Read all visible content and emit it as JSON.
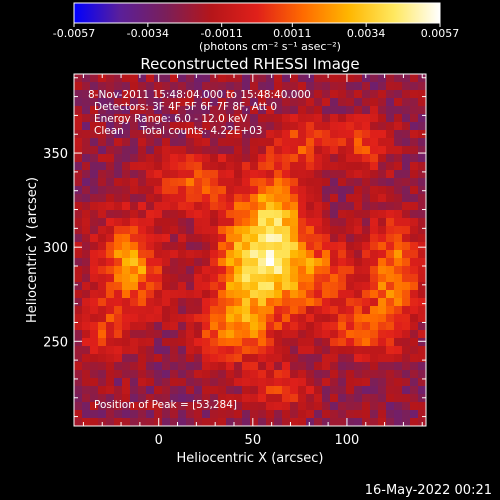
{
  "chart_data": {
    "type": "heatmap",
    "title": "Reconstructed RHESSI Image",
    "xlabel": "Heliocentric X (arcsec)",
    "ylabel": "Heliocentric Y (arcsec)",
    "xlim": [
      -45,
      142
    ],
    "ylim": [
      205,
      392
    ],
    "x_ticks": [
      0,
      50,
      100
    ],
    "y_ticks": [
      250,
      300,
      350
    ],
    "colorbar": {
      "range": [
        -0.0057,
        0.0057
      ],
      "tick_values": [
        -0.0057,
        -0.0034,
        -0.0011,
        0.0011,
        0.0034,
        0.0057
      ],
      "tick_labels": [
        "-0.0057",
        "-0.0034",
        "-0.0011",
        "0.0011",
        "0.0034",
        "0.0057"
      ],
      "units": "(photons cm⁻² s⁻¹ asec⁻²)",
      "colors": [
        "#0000ff",
        "#5a1f9a",
        "#7a1f5a",
        "#b5161a",
        "#e0201a",
        "#ff6a00",
        "#ffb600",
        "#ffe860",
        "#ffffff"
      ]
    },
    "annotations": [
      "8-Nov-2011 15:48:04.000 to 15:48:40.000",
      "Detectors: 3F 4F 5F 6F 7F 8F, Att 0",
      "Energy Range: 6.0 - 12.0 keV",
      "Clean     Total counts: 4.22E+03"
    ],
    "peak_label": "Position of Peak = [53,284]",
    "peak": [
      53,
      284
    ],
    "sources": [
      {
        "x": 53,
        "y": 290,
        "sx": 16,
        "sy": 20,
        "amp": 0.0062
      },
      {
        "x": 62,
        "y": 320,
        "sx": 12,
        "sy": 16,
        "amp": 0.0035
      },
      {
        "x": 40,
        "y": 255,
        "sx": 14,
        "sy": 12,
        "amp": 0.0035
      },
      {
        "x": 85,
        "y": 285,
        "sx": 14,
        "sy": 14,
        "amp": 0.003
      },
      {
        "x": -15,
        "y": 290,
        "sx": 12,
        "sy": 18,
        "amp": 0.0046
      },
      {
        "x": 125,
        "y": 285,
        "sx": 10,
        "sy": 22,
        "amp": 0.004
      },
      {
        "x": 105,
        "y": 255,
        "sx": 12,
        "sy": 10,
        "amp": 0.003
      },
      {
        "x": 20,
        "y": 335,
        "sx": 16,
        "sy": 12,
        "amp": 0.003
      },
      {
        "x": 75,
        "y": 355,
        "sx": 14,
        "sy": 10,
        "amp": 0.0025
      },
      {
        "x": 110,
        "y": 355,
        "sx": 10,
        "sy": 10,
        "amp": 0.0025
      },
      {
        "x": 65,
        "y": 225,
        "sx": 12,
        "sy": 8,
        "amp": 0.0025
      },
      {
        "x": -30,
        "y": 255,
        "sx": 8,
        "sy": 10,
        "amp": 0.0022
      }
    ],
    "background": -0.0022
  },
  "footer": {
    "timestamp": "16-May-2022 00:21"
  }
}
